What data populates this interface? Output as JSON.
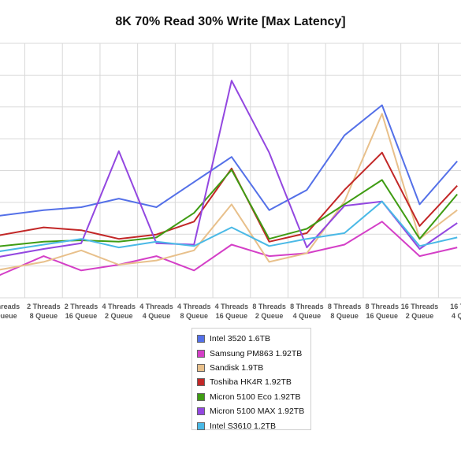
{
  "chart_data": {
    "type": "line",
    "title": "8K 70% Read 30% Write [Max Latency]",
    "xlabel": "",
    "ylabel": "",
    "categories": [
      [
        "Threads",
        "Queue"
      ],
      [
        "2 Threads",
        "8 Queue"
      ],
      [
        "2 Threads",
        "16 Queue"
      ],
      [
        "4 Threads",
        "2 Queue"
      ],
      [
        "4 Threads",
        "4 Queue"
      ],
      [
        "4 Threads",
        "8 Queue"
      ],
      [
        "4 Threads",
        "16 Queue"
      ],
      [
        "8 Threads",
        "2 Queue"
      ],
      [
        "8 Threads",
        "4 Queue"
      ],
      [
        "8 Threads",
        "8 Queue"
      ],
      [
        "8 Threads",
        "16 Queue"
      ],
      [
        "16 Threads",
        "2 Queue"
      ],
      [
        "16 T",
        "4 Q"
      ]
    ],
    "x": [
      0.5,
      1.5,
      2.5,
      3.5,
      4.5,
      5.5,
      6.5,
      7.5,
      8.5,
      9.5,
      10.5,
      11.5,
      12.5
    ],
    "xlim": [
      0.34,
      12.6
    ],
    "ylim": [
      0,
      8.85
    ],
    "gridlines": 8,
    "grid": true,
    "legend_position": "bottom-center",
    "series": [
      {
        "name": "Intel 3520 1.6TB",
        "color": "#5470e8",
        "x": [
          0,
          1.5,
          2.5,
          3.5,
          4.5,
          6.5,
          7.5,
          8.5,
          9.5,
          10.5,
          11.5,
          12.5
        ],
        "values": [
          2.8,
          3.05,
          3.15,
          3.45,
          3.15,
          4.9,
          3.05,
          3.75,
          5.65,
          6.7,
          3.25,
          4.75
        ]
      },
      {
        "name": "Samsung PM863 1.92TB",
        "color": "#d43fc7",
        "x": [
          0,
          1.5,
          2.5,
          3.5,
          4.5,
          5.5,
          6.5,
          7.5,
          8.5,
          9.5,
          10.5,
          11.5,
          12.5
        ],
        "values": [
          0.6,
          1.45,
          0.95,
          1.15,
          1.45,
          0.95,
          1.85,
          1.45,
          1.55,
          1.85,
          2.65,
          1.45,
          1.75
        ]
      },
      {
        "name": "Sandisk 1.9TB",
        "color": "#e8c08b",
        "x": [
          0,
          1.5,
          2.5,
          3.5,
          4.5,
          5.5,
          6.5,
          7.5,
          8.5,
          9.5,
          10.5,
          11.5,
          12.5
        ],
        "values": [
          0.9,
          1.25,
          1.65,
          1.15,
          1.3,
          1.65,
          3.25,
          1.25,
          1.55,
          3.35,
          6.4,
          2.05,
          3.05
        ]
      },
      {
        "name": "Toshiba HK4R 1.92TB",
        "color": "#c22727",
        "x": [
          0,
          1.5,
          2.5,
          3.5,
          4.5,
          5.5,
          6.5,
          7.5,
          8.5,
          9.5,
          10.5,
          11.5,
          12.5
        ],
        "values": [
          2.1,
          2.45,
          2.35,
          2.05,
          2.2,
          2.65,
          4.5,
          1.95,
          2.25,
          3.75,
          5.05,
          2.5,
          3.9
        ]
      },
      {
        "name": "Micron 5100 Eco 1.92TB",
        "color": "#3f9c13",
        "x": [
          0,
          1.5,
          2.5,
          3.5,
          4.5,
          5.5,
          6.5,
          7.5,
          8.5,
          9.5,
          10.5,
          11.5,
          12.5
        ],
        "values": [
          1.75,
          1.95,
          2.0,
          1.95,
          2.1,
          2.95,
          4.45,
          2.05,
          2.4,
          3.25,
          4.1,
          2.05,
          3.6
        ]
      },
      {
        "name": "Micron 5100 MAX 1.92TB",
        "color": "#9347e0",
        "x": [
          0,
          1.5,
          2.5,
          3.5,
          4.5,
          5.5,
          6.5,
          7.5,
          8.5,
          9.5,
          10.5,
          11.5,
          12.5
        ],
        "values": [
          1.35,
          1.7,
          1.9,
          5.1,
          1.9,
          1.85,
          7.55,
          5.05,
          1.75,
          3.2,
          3.35,
          1.7,
          2.6
        ]
      },
      {
        "name": "Intel S3610 1.2TB",
        "color": "#4ab9e6",
        "x": [
          0,
          1.5,
          2.5,
          3.5,
          4.5,
          5.5,
          6.5,
          7.5,
          8.5,
          9.5,
          10.5,
          11.5,
          12.5
        ],
        "values": [
          1.55,
          1.85,
          2.05,
          1.75,
          1.95,
          1.8,
          2.45,
          1.8,
          2.05,
          2.25,
          3.35,
          1.8,
          2.1
        ]
      }
    ]
  }
}
